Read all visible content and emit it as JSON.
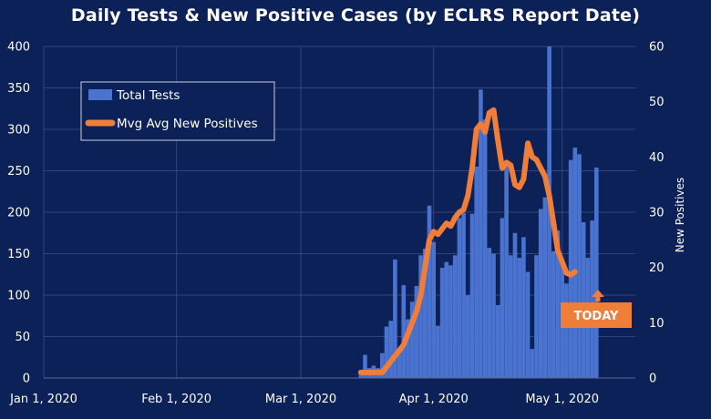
{
  "chart_data": {
    "type": "bar+line",
    "title": "Daily Tests & New Positive Cases (by ECLRS Report Date)",
    "xlabel": "",
    "ylabel": "",
    "y2label": "New Positives",
    "x_ticks": [
      "Jan 1, 2020",
      "Feb 1, 2020",
      "Mar 1, 2020",
      "Apr 1, 2020",
      "May 1, 2020"
    ],
    "ylim": [
      0,
      400
    ],
    "y2lim": [
      0,
      60
    ],
    "y_ticks": [
      0,
      50,
      100,
      150,
      200,
      250,
      300,
      350,
      400
    ],
    "y2_ticks": [
      0,
      10,
      20,
      30,
      40,
      50,
      60
    ],
    "grid": true,
    "legend_position": "top-left",
    "colors": {
      "background": "#0c2157",
      "bars": "#4a72cf",
      "line": "#f07d38",
      "today": "#f07d38",
      "grid": "#32457a"
    },
    "series": [
      {
        "name": "Total Tests",
        "type": "bar",
        "axis": "left",
        "start_date": "2020-03-15",
        "values": [
          4,
          28,
          12,
          15,
          12,
          30,
          62,
          69,
          143,
          33,
          112,
          71,
          92,
          111,
          148,
          156,
          208,
          164,
          63,
          133,
          140,
          136,
          148,
          193,
          199,
          100,
          198,
          255,
          348,
          312,
          157,
          150,
          88,
          193,
          258,
          148,
          175,
          145,
          170,
          128,
          35,
          148,
          204,
          218,
          400,
          153,
          178,
          139,
          114,
          263,
          278,
          270,
          188,
          145,
          190,
          254
        ]
      },
      {
        "name": "Mvg Avg New Positives",
        "type": "line",
        "axis": "right",
        "start_date": "2020-03-15",
        "values": [
          1,
          1,
          1,
          1,
          1,
          1,
          2,
          3,
          4,
          5,
          6,
          8,
          10,
          12,
          15,
          20,
          25,
          26.5,
          26,
          27,
          28,
          27.5,
          29,
          30,
          30.5,
          33,
          38,
          45,
          46,
          44.5,
          48,
          48.5,
          43,
          38,
          39,
          38.5,
          35,
          34.5,
          36,
          42.5,
          40,
          39.5,
          38,
          36.5,
          33,
          28,
          23,
          21,
          19,
          18.7,
          19.2
        ]
      }
    ],
    "annotations": [
      {
        "text": "TODAY",
        "date": "2020-05-06"
      }
    ]
  }
}
